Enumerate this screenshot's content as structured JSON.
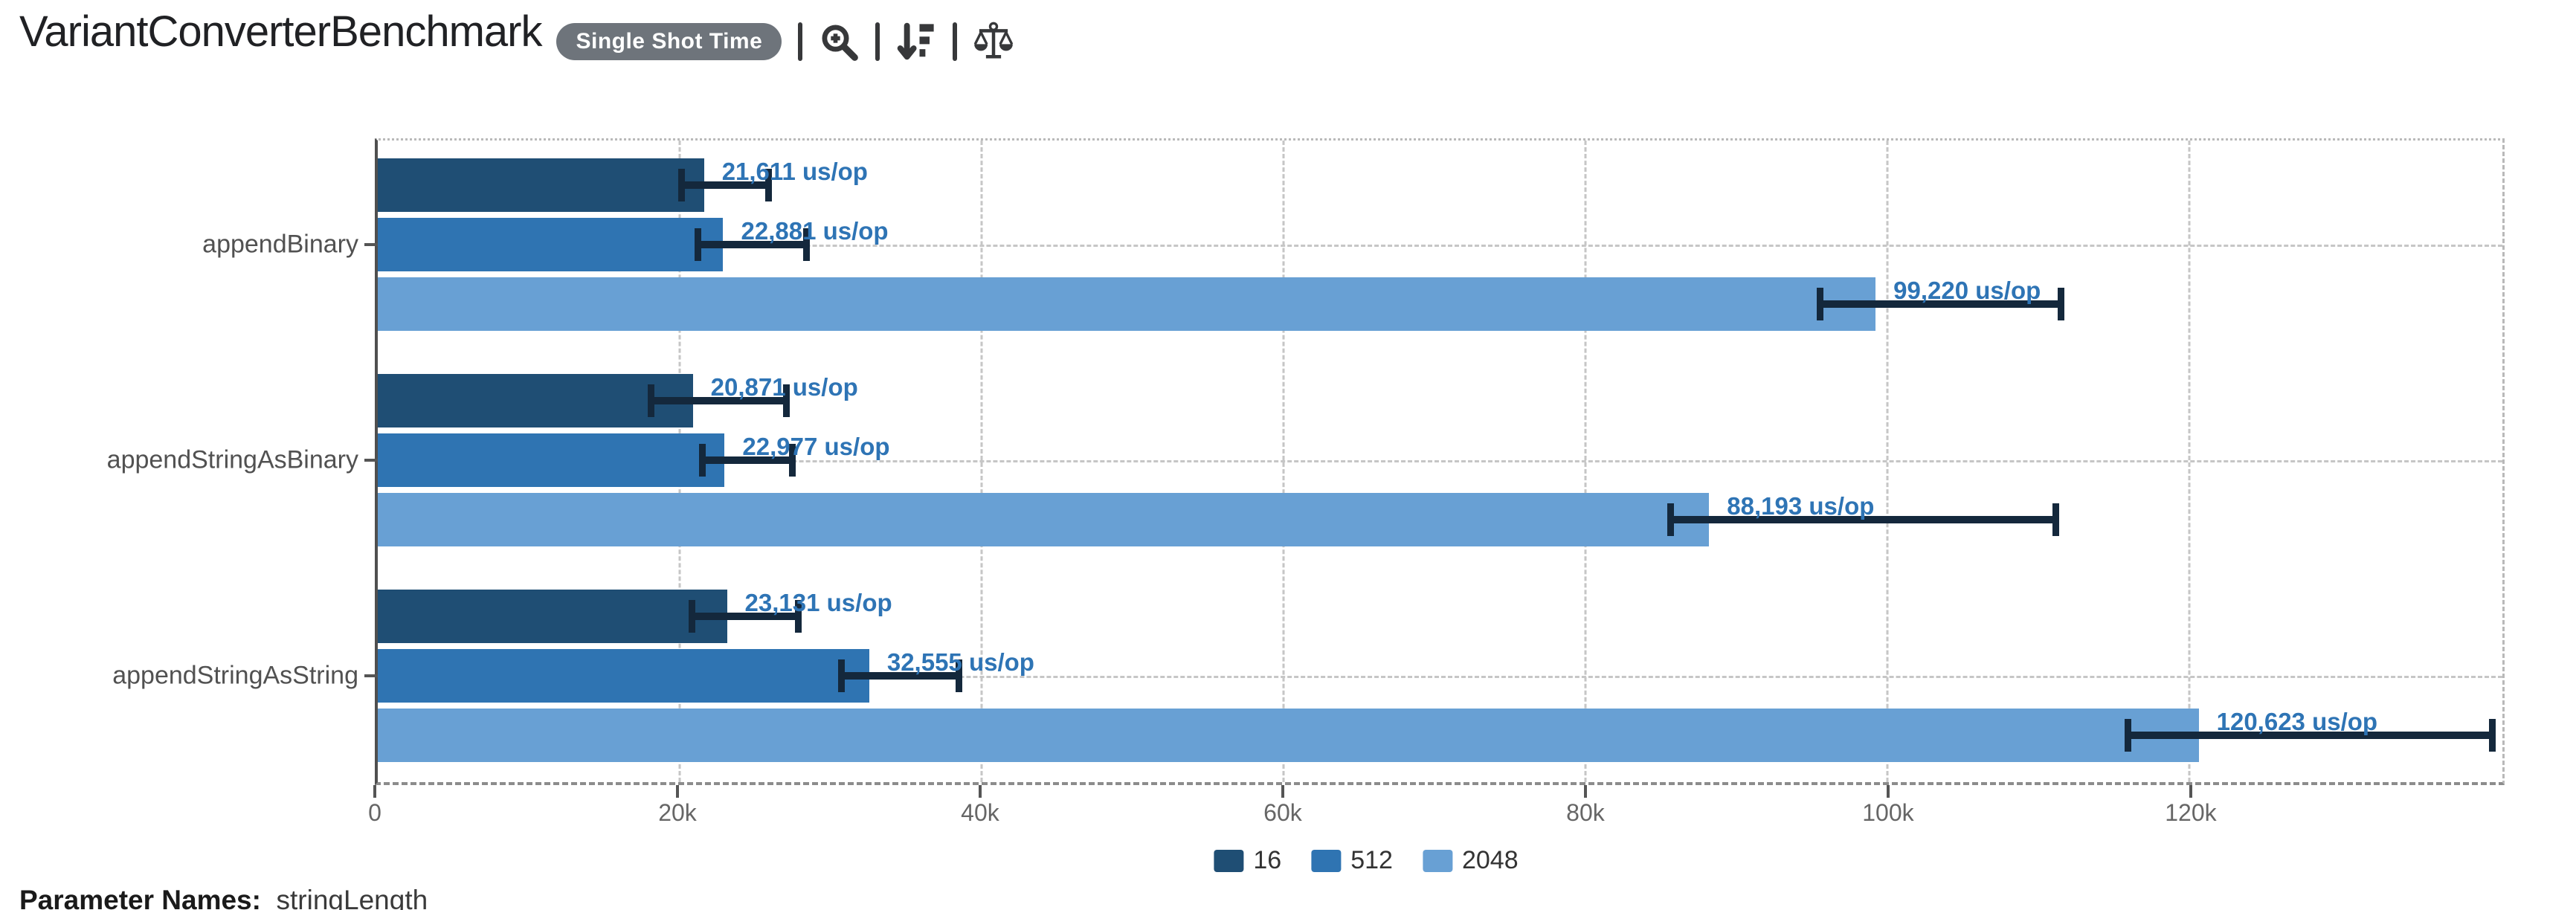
{
  "header": {
    "title": "VariantConverterBenchmark",
    "mode_badge": "Single Shot Time",
    "toolbar": {
      "icons": [
        "zoom-in",
        "sort-amount-down",
        "balance-scale"
      ]
    }
  },
  "chart_data": {
    "type": "bar",
    "orientation": "horizontal",
    "title": "VariantConverterBenchmark",
    "unit": "us/op",
    "grid": true,
    "categories": [
      "appendBinary",
      "appendStringAsBinary",
      "appendStringAsString"
    ],
    "series": [
      {
        "name": "16",
        "color": "#1f4e74",
        "values": [
          21611,
          20871,
          23131
        ],
        "labels": [
          "21,611 us/op",
          "20,871 us/op",
          "23,131 us/op"
        ],
        "error_ranges": [
          [
            19900,
            26100
          ],
          [
            17900,
            27300
          ],
          [
            20600,
            28100
          ]
        ]
      },
      {
        "name": "512",
        "color": "#2f74b2",
        "values": [
          22881,
          22977,
          32555
        ],
        "labels": [
          "22,881 us/op",
          "22,977 us/op",
          "32,555 us/op"
        ],
        "error_ranges": [
          [
            21000,
            28600
          ],
          [
            21300,
            27700
          ],
          [
            30500,
            38700
          ]
        ]
      },
      {
        "name": "2048",
        "color": "#68a0d4",
        "values": [
          99220,
          88193,
          120623
        ],
        "labels": [
          "99,220 us/op",
          "88,193 us/op",
          "120,623 us/op"
        ],
        "error_ranges": [
          [
            95300,
            111700
          ],
          [
            85400,
            111400
          ],
          [
            115700,
            140300
          ]
        ]
      }
    ],
    "x_axis": {
      "min": 0,
      "max": 140740,
      "ticks": [
        {
          "value": 0,
          "label": "0"
        },
        {
          "value": 20000,
          "label": "20k"
        },
        {
          "value": 40000,
          "label": "40k"
        },
        {
          "value": 60000,
          "label": "60k"
        },
        {
          "value": 80000,
          "label": "80k"
        },
        {
          "value": 100000,
          "label": "100k"
        },
        {
          "value": 120000,
          "label": "120k"
        }
      ]
    },
    "legend": {
      "position": "bottom",
      "entries": [
        "16",
        "512",
        "2048"
      ]
    }
  },
  "footer": {
    "parameter_names_label": "Parameter Names:",
    "parameter_names_value": "stringLength"
  }
}
